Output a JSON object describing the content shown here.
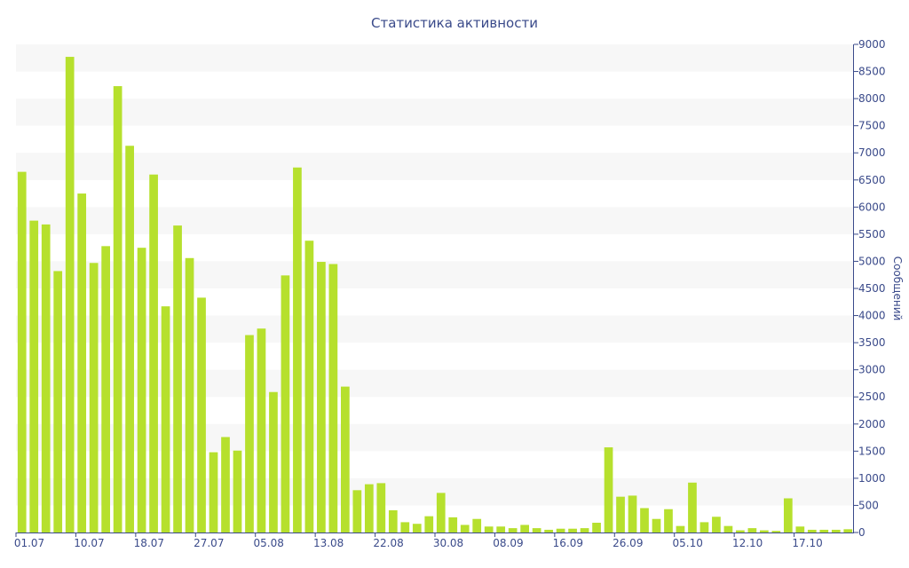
{
  "chart_data": {
    "type": "bar",
    "title": "Статистика активности",
    "ylabel": "Сообщений",
    "ylim": [
      0,
      9000
    ],
    "y_ticks": [
      0,
      500,
      1000,
      1500,
      2000,
      2500,
      3000,
      3500,
      4000,
      4500,
      5000,
      5500,
      6000,
      6500,
      7000,
      7500,
      8000,
      8500,
      9000
    ],
    "y_axis_side": "right",
    "grid": "alternating horizontal bands",
    "x_tick_labels": [
      "01.07",
      "10.07",
      "18.07",
      "27.07",
      "05.08",
      "13.08",
      "22.08",
      "30.08",
      "08.09",
      "16.09",
      "26.09",
      "05.10",
      "12.10",
      "17.10"
    ],
    "bar_color": "#b6e02d",
    "band_color": "#f7f7f7",
    "axis_color": "#3a4a8a",
    "values": [
      6650,
      5750,
      5680,
      4820,
      8770,
      6250,
      4970,
      5280,
      8230,
      7130,
      5250,
      6600,
      4170,
      5660,
      5060,
      4330,
      1480,
      1760,
      1510,
      3640,
      3760,
      2590,
      4740,
      6730,
      5380,
      4990,
      4950,
      2690,
      780,
      890,
      910,
      410,
      190,
      160,
      300,
      730,
      280,
      140,
      250,
      110,
      110,
      80,
      140,
      80,
      50,
      70,
      70,
      80,
      180,
      1570,
      660,
      680,
      450,
      250,
      430,
      120,
      920,
      190,
      290,
      120,
      40,
      80,
      40,
      30,
      630,
      110,
      50,
      50,
      50,
      60
    ]
  }
}
